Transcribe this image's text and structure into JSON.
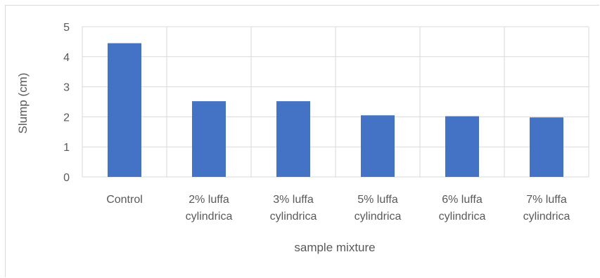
{
  "chart_data": {
    "type": "bar",
    "categories": [
      [
        "Control"
      ],
      [
        "2% luffa",
        "cylindrica"
      ],
      [
        "3% luffa",
        "cylindrica"
      ],
      [
        "5% luffa",
        "cylindrica"
      ],
      [
        "6% luffa",
        "cylindrica"
      ],
      [
        "7% luffa",
        "cylindrica"
      ]
    ],
    "values": [
      4.45,
      2.52,
      2.52,
      2.05,
      2.02,
      1.98
    ],
    "title": "",
    "xlabel": "sample mixture",
    "ylabel": "Slump (cm)",
    "ylim": [
      0,
      5
    ],
    "yticks": [
      0,
      1,
      2,
      3,
      4,
      5
    ],
    "grid": true,
    "legend": "none",
    "bar_color": "#4472c4",
    "grid_color": "#d9d9d9",
    "text_color": "#595959"
  }
}
